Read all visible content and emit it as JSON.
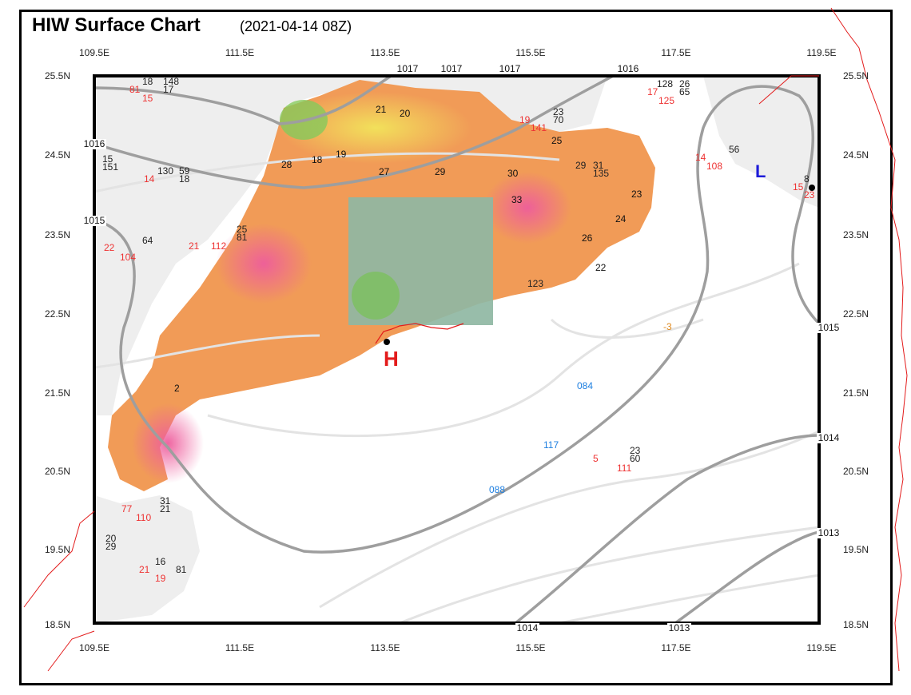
{
  "header": {
    "title": "HIW Surface Chart",
    "subtitle": "(2021-04-14 08Z)"
  },
  "axes": {
    "lon_ticks": [
      "109.5E",
      "111.5E",
      "113.5E",
      "115.5E",
      "117.5E",
      "119.5E"
    ],
    "lat_ticks": [
      "25.5N",
      "24.5N",
      "23.5N",
      "22.5N",
      "21.5N",
      "20.5N",
      "19.5N",
      "18.5N"
    ]
  },
  "pressure_centres": {
    "high": "H",
    "low": "L"
  },
  "isobars": [
    "1017",
    "1017",
    "1017",
    "1016",
    "1016",
    "1015",
    "1015",
    "1014",
    "1014",
    "1013",
    "1013"
  ],
  "station_labels": [
    "18",
    "148",
    "17",
    "81",
    "15",
    "128",
    "26",
    "65",
    "17",
    "125",
    "23",
    "70",
    "19",
    "141",
    "15",
    "151",
    "56",
    "14",
    "108",
    "64",
    "22",
    "104",
    "25",
    "81",
    "21",
    "112",
    "29",
    "31",
    "135",
    "123",
    "23",
    "60",
    "5",
    "111",
    "31",
    "21",
    "77",
    "110",
    "20",
    "29",
    "16",
    "81",
    "21",
    "19",
    "130",
    "59",
    "14",
    "18",
    "8",
    "15",
    "23"
  ],
  "land_values": [
    "21",
    "20",
    "19",
    "18",
    "28",
    "27",
    "29",
    "30",
    "33",
    "25",
    "23",
    "24",
    "26",
    "22",
    "2"
  ],
  "marine_values": [
    "084",
    "117",
    "088",
    "-3"
  ],
  "colors": {
    "land_warm": "#f09a55",
    "land_hot": "#ee6fa0",
    "land_cool": "#8fb7a3",
    "land_green": "#86c95b",
    "isobar": "#9e9e9e",
    "faint_isobar": "#dedede",
    "coast": "#e31b1b",
    "high": "#e31b1b",
    "low": "#1d1bd9"
  }
}
